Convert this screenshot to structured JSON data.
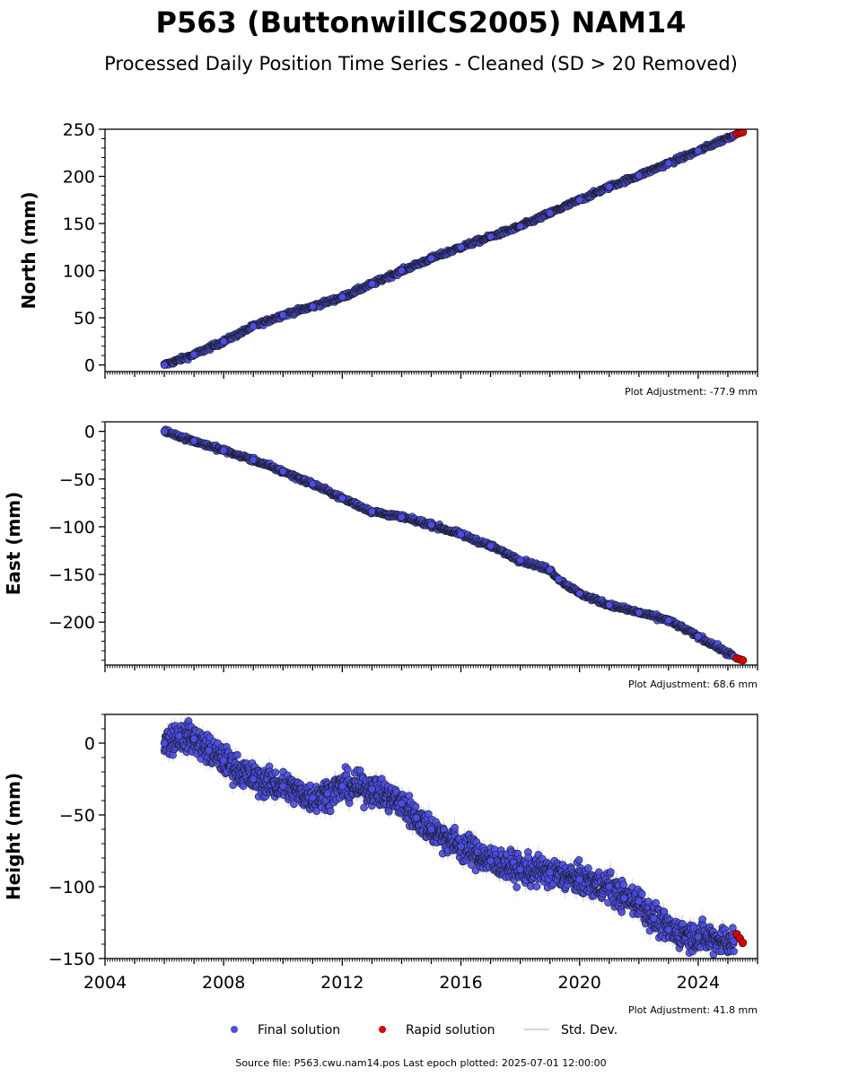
{
  "figure": {
    "title": "P563 (ButtonwillCS2005) NAM14",
    "subtitle": "Processed Daily Position Time Series - Cleaned (SD > 20 Removed)",
    "source_note": "Source file: P563.cwu.nam14.pos  Last epoch plotted: 2025-07-01 12:00:00"
  },
  "legend": {
    "placement": "bottom-center",
    "items": [
      {
        "label": "Final solution",
        "color": "#4b4de8",
        "marker": "circle"
      },
      {
        "label": "Rapid solution",
        "color": "#e00000",
        "marker": "circle"
      },
      {
        "label": "Std. Dev.",
        "color": "#c8c8c8",
        "marker": "line"
      }
    ]
  },
  "colors": {
    "final": "#4b4de8",
    "rapid": "#e00000",
    "stddev": "#bdbdbd",
    "marker_edge": "#1a1a1a"
  },
  "chart_data": [
    {
      "type": "scatter",
      "panel": "north",
      "ylabel": "North (mm)",
      "adjustment_note": "Plot Adjustment: -77.9 mm",
      "xlim": [
        2004,
        2026
      ],
      "ylim": [
        -7,
        250
      ],
      "yticks": [
        0,
        50,
        100,
        150,
        200,
        250
      ],
      "ytick_labels": [
        "0",
        "50",
        "100",
        "150",
        "200",
        "250"
      ],
      "show_xtick_labels": false,
      "series": [
        {
          "name": "Final solution",
          "x": [
            2006.0,
            2007.0,
            2008.0,
            2009.0,
            2010.0,
            2011.0,
            2012.0,
            2013.0,
            2014.0,
            2015.0,
            2016.0,
            2017.0,
            2018.0,
            2019.0,
            2020.0,
            2021.0,
            2022.0,
            2023.0,
            2024.0,
            2025.2
          ],
          "y": [
            0,
            11,
            25,
            41,
            53,
            62,
            72,
            86,
            100,
            113,
            125,
            136,
            147,
            161,
            175,
            189,
            201,
            214,
            227,
            244
          ]
        },
        {
          "name": "Rapid solution",
          "x": [
            2025.3,
            2025.4,
            2025.5
          ],
          "y": [
            245,
            246,
            247
          ]
        }
      ],
      "std_dev_mm": 1.5
    },
    {
      "type": "scatter",
      "panel": "east",
      "ylabel": "East (mm)",
      "adjustment_note": "Plot Adjustment: 68.6 mm",
      "xlim": [
        2004,
        2026
      ],
      "ylim": [
        -245,
        10
      ],
      "yticks": [
        0,
        -50,
        -100,
        -150,
        -200
      ],
      "ytick_labels": [
        "0",
        "−50",
        "−100",
        "−150",
        "−200"
      ],
      "show_xtick_labels": false,
      "series": [
        {
          "name": "Final solution",
          "x": [
            2006.0,
            2007.0,
            2008.0,
            2009.0,
            2010.0,
            2011.0,
            2012.0,
            2013.0,
            2014.0,
            2015.0,
            2016.0,
            2017.0,
            2018.0,
            2019.0,
            2019.3,
            2020.0,
            2021.0,
            2022.0,
            2023.0,
            2024.0,
            2025.2
          ],
          "y": [
            0,
            -10,
            -20,
            -30,
            -42,
            -55,
            -70,
            -84,
            -90,
            -98,
            -108,
            -120,
            -135,
            -145,
            -155,
            -170,
            -182,
            -190,
            -198,
            -215,
            -236
          ]
        },
        {
          "name": "Rapid solution",
          "x": [
            2025.3,
            2025.4,
            2025.5
          ],
          "y": [
            -238,
            -239,
            -240
          ]
        }
      ],
      "std_dev_mm": 1.5
    },
    {
      "type": "scatter",
      "panel": "height",
      "ylabel": "Height (mm)",
      "adjustment_note": "Plot Adjustment: 41.8 mm",
      "xlim": [
        2004,
        2026
      ],
      "ylim": [
        -150,
        20
      ],
      "yticks": [
        0,
        -50,
        -100,
        -150
      ],
      "ytick_labels": [
        "0",
        "−50",
        "−100",
        "−150"
      ],
      "xticks": [
        2004,
        2008,
        2012,
        2016,
        2020,
        2024
      ],
      "xtick_labels": [
        "2004",
        "2008",
        "2012",
        "2016",
        "2020",
        "2024"
      ],
      "show_xtick_labels": true,
      "series": [
        {
          "name": "Final solution",
          "x": [
            2006.0,
            2006.5,
            2007.0,
            2007.5,
            2008.0,
            2009.0,
            2010.0,
            2011.0,
            2011.5,
            2012.0,
            2013.0,
            2014.0,
            2014.5,
            2015.0,
            2016.0,
            2017.0,
            2018.0,
            2019.0,
            2020.0,
            2021.0,
            2021.5,
            2022.0,
            2022.5,
            2023.0,
            2024.0,
            2025.2
          ],
          "y": [
            0,
            5,
            3,
            -5,
            -12,
            -25,
            -30,
            -38,
            -35,
            -30,
            -32,
            -42,
            -52,
            -60,
            -72,
            -82,
            -88,
            -90,
            -95,
            -100,
            -108,
            -110,
            -122,
            -130,
            -135,
            -138
          ]
        },
        {
          "name": "Rapid solution",
          "x": [
            2025.3,
            2025.4,
            2025.5
          ],
          "y": [
            -133,
            -136,
            -139
          ]
        }
      ],
      "std_dev_mm": 5
    }
  ]
}
